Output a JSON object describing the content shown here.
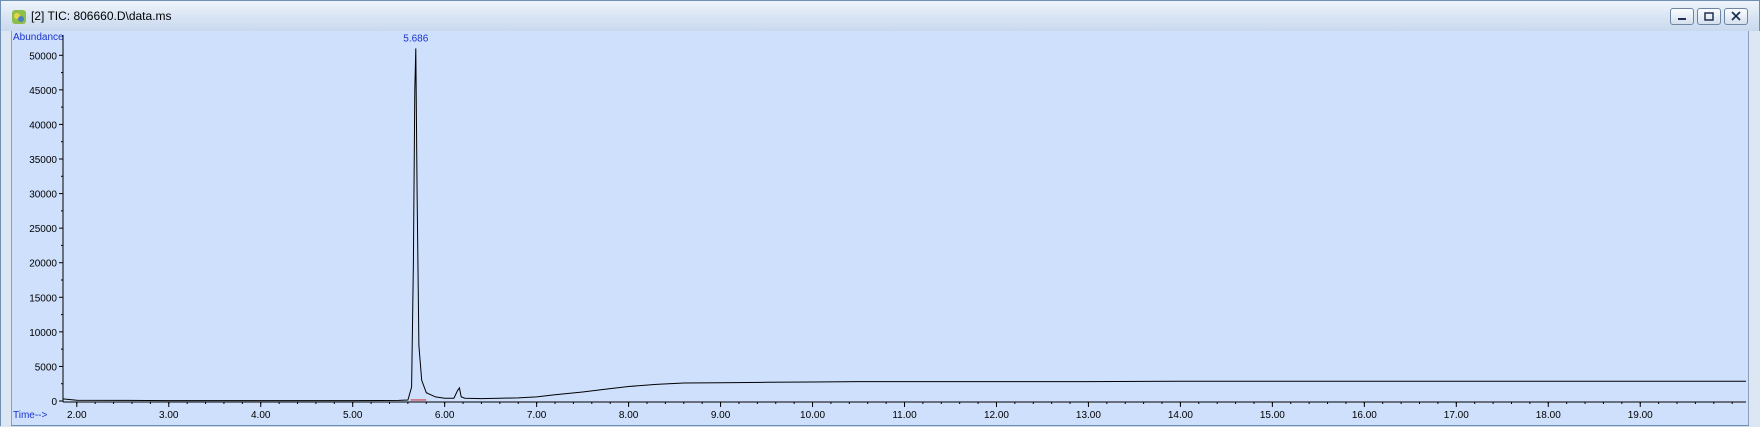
{
  "window": {
    "title": "[2] TIC: 806660.D\\data.ms",
    "icons": [
      "chromatogram-app-icon",
      "minimize-icon",
      "restore-icon",
      "close-icon"
    ]
  },
  "colors": {
    "plot_background": "#cfe0fd",
    "trace": "#000000",
    "label_blue": "#1a33cc",
    "integration": "#cc2222"
  },
  "chart_data": {
    "type": "line",
    "xlabel": "Time-->",
    "ylabel": "Abundance",
    "xlim": [
      1.85,
      20.15
    ],
    "ylim": [
      0,
      52500
    ],
    "x_ticks": [
      "2.00",
      "3.00",
      "4.00",
      "5.00",
      "6.00",
      "7.00",
      "8.00",
      "9.00",
      "10.00",
      "11.00",
      "12.00",
      "13.00",
      "14.00",
      "15.00",
      "16.00",
      "17.00",
      "18.00",
      "19.00"
    ],
    "y_ticks": [
      "0",
      "5000",
      "10000",
      "15000",
      "20000",
      "25000",
      "30000",
      "35000",
      "40000",
      "45000",
      "50000"
    ],
    "grid": false,
    "legend": "none",
    "annotations": [
      {
        "text": "5.686",
        "x": 5.686,
        "y": 52000
      }
    ],
    "series": [
      {
        "x": [
          1.85,
          2.0,
          2.5,
          3.0,
          3.5,
          4.0,
          4.5,
          5.0,
          5.5,
          5.6,
          5.64,
          5.66,
          5.675,
          5.686,
          5.7,
          5.72,
          5.75,
          5.8,
          5.9,
          6.0,
          6.1,
          6.14,
          6.16,
          6.18,
          6.22,
          6.4,
          6.6,
          6.8,
          7.0,
          7.2,
          7.5,
          7.8,
          8.0,
          8.3,
          8.6,
          9.0,
          9.5,
          10.0,
          10.5,
          11.0,
          12.0,
          13.0,
          14.0,
          15.0,
          16.0,
          17.0,
          18.0,
          19.0,
          20.0,
          20.15
        ],
        "y": [
          300,
          120,
          80,
          60,
          60,
          60,
          60,
          60,
          80,
          150,
          2000,
          20000,
          45000,
          51000,
          30000,
          8000,
          3000,
          1200,
          600,
          400,
          400,
          1500,
          1900,
          600,
          400,
          350,
          400,
          450,
          600,
          900,
          1300,
          1800,
          2100,
          2400,
          2600,
          2650,
          2700,
          2750,
          2800,
          2800,
          2800,
          2800,
          2850,
          2850,
          2850,
          2850,
          2850,
          2850,
          2850,
          2850
        ]
      }
    ],
    "integration_baseline": {
      "x": [
        5.63,
        5.8
      ],
      "y": [
        150,
        150
      ]
    }
  }
}
